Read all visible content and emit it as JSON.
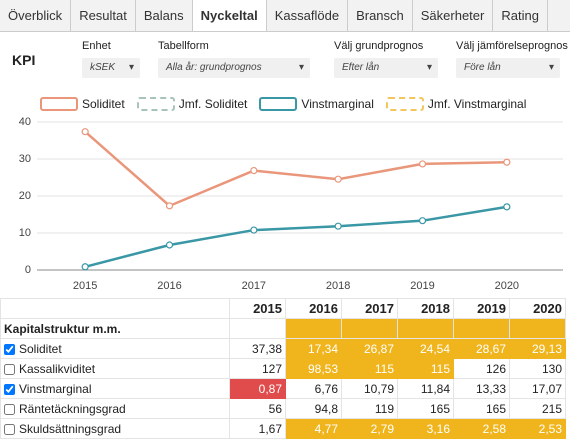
{
  "tabs": {
    "items": [
      "Överblick",
      "Resultat",
      "Balans",
      "Nyckeltal",
      "Kassaflöde",
      "Bransch",
      "Säkerheter",
      "Rating"
    ],
    "active": 3
  },
  "kpi_title": "KPI",
  "controls": [
    {
      "label": "Enhet",
      "value": "kSEK"
    },
    {
      "label": "Tabellform",
      "value": "Alla år: grundprognos"
    },
    {
      "label": "Välj grundprognos",
      "value": "Efter lån"
    },
    {
      "label": "Välj jämförelseprognos",
      "value": "Före lån"
    }
  ],
  "chart_data": {
    "type": "line",
    "categories": [
      "2015",
      "2016",
      "2017",
      "2018",
      "2019",
      "2020"
    ],
    "series": [
      {
        "name": "Soliditet",
        "color": "#e9967a",
        "dashed": false,
        "values": [
          37.38,
          17.34,
          26.87,
          24.54,
          28.67,
          29.13
        ]
      },
      {
        "name": "Jmf. Soliditet",
        "color": "#a8c4b8",
        "dashed": true,
        "values": [
          null,
          null,
          null,
          null,
          null,
          null
        ]
      },
      {
        "name": "Vinstmarginal",
        "color": "#3a97a5",
        "dashed": false,
        "values": [
          0.87,
          6.76,
          10.79,
          11.84,
          13.33,
          17.07
        ]
      },
      {
        "name": "Jmf. Vinstmarginal",
        "color": "#f2c65a",
        "dashed": true,
        "values": [
          null,
          null,
          null,
          null,
          null,
          null
        ]
      }
    ],
    "ylim": [
      0,
      40
    ],
    "yticks": [
      0,
      10,
      20,
      30,
      40
    ]
  },
  "table": {
    "columns": [
      "2015",
      "2016",
      "2017",
      "2018",
      "2019",
      "2020"
    ],
    "section": "Kapitalstruktur m.m.",
    "rows": [
      {
        "name": "Soliditet",
        "checked": true,
        "cells": [
          "37,38",
          "17,34",
          "26,87",
          "24,54",
          "28,67",
          "29,13"
        ],
        "cell_colors": [
          null,
          "#f0b51c",
          "#f0b51c",
          "#f0b51c",
          "#f0b51c",
          "#f0b51c"
        ]
      },
      {
        "name": "Kassalikviditet",
        "checked": false,
        "cells": [
          "127",
          "98,53",
          "115",
          "115",
          "126",
          "130"
        ],
        "cell_colors": [
          null,
          "#f0b51c",
          "#f0b51c",
          "#f0b51c",
          null,
          null
        ]
      },
      {
        "name": "Vinstmarginal",
        "checked": true,
        "cells": [
          "0,87",
          "6,76",
          "10,79",
          "11,84",
          "13,33",
          "17,07"
        ],
        "cell_colors": [
          "#e04b4b",
          null,
          null,
          null,
          null,
          null
        ]
      },
      {
        "name": "Räntetäckningsgrad",
        "checked": false,
        "cells": [
          "56",
          "94,8",
          "119",
          "165",
          "165",
          "215"
        ],
        "cell_colors": [
          null,
          null,
          null,
          null,
          null,
          null
        ]
      },
      {
        "name": "Skuldsättningsgrad",
        "checked": false,
        "cells": [
          "1,67",
          "4,77",
          "2,79",
          "3,16",
          "2,58",
          "2,53"
        ],
        "cell_colors": [
          null,
          "#f0b51c",
          "#f0b51c",
          "#f0b51c",
          "#f0b51c",
          "#f0b51c"
        ]
      }
    ]
  }
}
